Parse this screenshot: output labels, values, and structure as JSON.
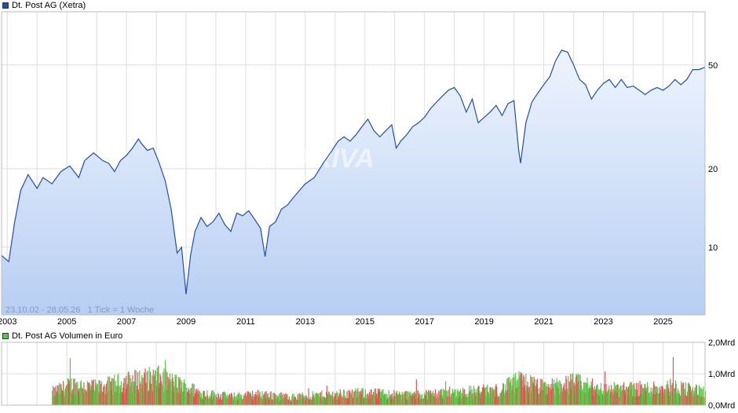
{
  "price_legend": {
    "label": "Dt. Post AG (Xetra)",
    "color": "#1f4fa8"
  },
  "volume_legend": {
    "label": "Dt. Post AG Volumen in Euro",
    "color": "#5cc84a"
  },
  "info_text": "23.10.02 - 28.05.26   1 Tick = 1 Woche",
  "watermark": "ARIVA",
  "chart_data": [
    {
      "type": "line",
      "scale": "log",
      "ylim": [
        5.5,
        80
      ],
      "xlim": [
        2002.81,
        2026.41
      ],
      "y_ticks": [
        {
          "value": 10,
          "label": "10"
        },
        {
          "value": 20,
          "label": "20"
        },
        {
          "value": 50,
          "label": "50"
        }
      ],
      "x_ticks": [
        {
          "value": 2003,
          "label": "2003"
        },
        {
          "value": 2005,
          "label": "2005"
        },
        {
          "value": 2007,
          "label": "2007"
        },
        {
          "value": 2009,
          "label": "2009"
        },
        {
          "value": 2011,
          "label": "2011"
        },
        {
          "value": 2013,
          "label": "2013"
        },
        {
          "value": 2015,
          "label": "2015"
        },
        {
          "value": 2017,
          "label": "2017"
        },
        {
          "value": 2019,
          "label": "2019"
        },
        {
          "value": 2021,
          "label": "2021"
        },
        {
          "value": 2023,
          "label": "2023"
        },
        {
          "value": 2025,
          "label": "2025"
        }
      ],
      "series": [
        {
          "x": [
            2002.81,
            2003.05,
            2003.25,
            2003.45,
            2003.7,
            2004.0,
            2004.2,
            2004.5,
            2004.8,
            2005.1,
            2005.4,
            2005.6,
            2005.9,
            2006.2,
            2006.4,
            2006.6,
            2006.8,
            2007.0,
            2007.2,
            2007.4,
            2007.5,
            2007.7,
            2007.9,
            2008.1,
            2008.3,
            2008.5,
            2008.7,
            2008.85,
            2009.0,
            2009.15,
            2009.3,
            2009.5,
            2009.7,
            2009.9,
            2010.1,
            2010.3,
            2010.5,
            2010.7,
            2010.9,
            2011.1,
            2011.3,
            2011.5,
            2011.65,
            2011.8,
            2012.0,
            2012.2,
            2012.4,
            2012.6,
            2012.8,
            2013.0,
            2013.3,
            2013.6,
            2013.9,
            2014.1,
            2014.3,
            2014.5,
            2014.7,
            2014.9,
            2015.1,
            2015.3,
            2015.5,
            2015.7,
            2015.9,
            2016.05,
            2016.2,
            2016.4,
            2016.6,
            2016.8,
            2017.0,
            2017.2,
            2017.4,
            2017.6,
            2017.8,
            2018.0,
            2018.2,
            2018.4,
            2018.6,
            2018.8,
            2019.0,
            2019.2,
            2019.4,
            2019.6,
            2019.8,
            2020.0,
            2020.15,
            2020.22,
            2020.4,
            2020.6,
            2020.8,
            2021.0,
            2021.2,
            2021.4,
            2021.6,
            2021.8,
            2022.0,
            2022.2,
            2022.4,
            2022.6,
            2022.8,
            2023.0,
            2023.2,
            2023.4,
            2023.6,
            2023.8,
            2024.0,
            2024.2,
            2024.4,
            2024.6,
            2024.8,
            2025.0,
            2025.2,
            2025.4,
            2025.6,
            2025.8,
            2026.0,
            2026.2,
            2026.41
          ],
          "values": [
            9.3,
            8.8,
            12.5,
            16.5,
            19,
            16.8,
            18.5,
            17.5,
            19.5,
            20.5,
            18.5,
            21.5,
            23,
            21.5,
            21,
            19.5,
            21.5,
            22.5,
            24,
            26,
            25,
            23.5,
            24,
            21,
            18,
            14,
            9.5,
            10,
            6.6,
            9.3,
            11.5,
            13,
            12,
            12.5,
            13.5,
            12.2,
            11.5,
            13.5,
            13.2,
            13.8,
            12.8,
            11.8,
            9.2,
            12,
            12.5,
            14,
            14.5,
            15.5,
            16.5,
            17.5,
            18.5,
            21,
            23.5,
            25.5,
            26.5,
            25.5,
            27,
            29,
            31,
            28,
            26.5,
            28,
            29.5,
            24,
            25.5,
            27,
            29,
            30,
            31.5,
            34,
            36,
            38,
            40,
            41,
            38,
            33,
            37,
            30,
            31.5,
            33,
            35,
            32,
            35.5,
            36.5,
            24,
            21,
            30,
            36,
            39,
            42,
            45,
            52,
            57,
            56,
            50,
            44,
            42,
            37,
            40,
            42.5,
            44,
            41,
            44,
            41,
            41.5,
            40,
            38.5,
            40,
            41,
            40,
            41.5,
            44,
            42,
            44,
            48,
            48,
            49
          ],
          "color": "#1f4fa8"
        }
      ]
    },
    {
      "type": "bar",
      "ylim": [
        0,
        2.0
      ],
      "y_ticks": [
        {
          "value": 0,
          "label": "0,0Mrd"
        },
        {
          "value": 1,
          "label": "1,0Mrd"
        },
        {
          "value": 2,
          "label": "2,0Mrd"
        }
      ],
      "volume_start_x": 2004.5,
      "volume_profile": [
        [
          2004.5,
          0.45
        ],
        [
          2005.2,
          0.72
        ],
        [
          2006.0,
          0.6
        ],
        [
          2007.0,
          0.82
        ],
        [
          2008.0,
          0.95
        ],
        [
          2008.8,
          0.7
        ],
        [
          2009.5,
          0.42
        ],
        [
          2010.5,
          0.3
        ],
        [
          2011.5,
          0.38
        ],
        [
          2012.5,
          0.28
        ],
        [
          2014.0,
          0.38
        ],
        [
          2015.0,
          0.42
        ],
        [
          2016.5,
          0.35
        ],
        [
          2018.0,
          0.45
        ],
        [
          2019.5,
          0.52
        ],
        [
          2020.2,
          0.85
        ],
        [
          2021.0,
          0.6
        ],
        [
          2022.0,
          0.78
        ],
        [
          2023.0,
          0.55
        ],
        [
          2024.5,
          0.58
        ],
        [
          2025.3,
          0.65
        ],
        [
          2026.41,
          0.45
        ]
      ],
      "colors": {
        "up": "#5cc84a",
        "down": "#e05555"
      }
    }
  ]
}
